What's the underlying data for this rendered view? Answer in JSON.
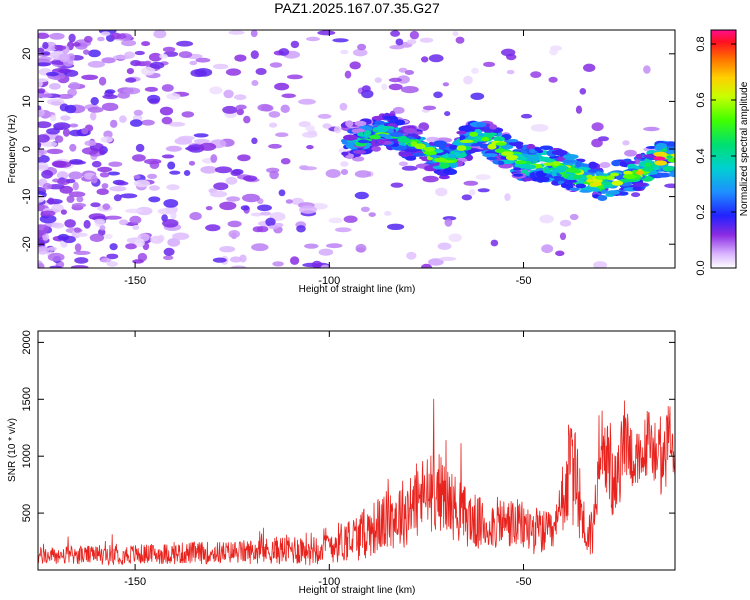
{
  "title": "PAZ1.2025.167.07.35.G27",
  "chart_data": [
    {
      "type": "heatmap",
      "xlabel": "Height of straight line (km)",
      "ylabel": "Frequency (Hz)",
      "xlim": [
        -175,
        -11
      ],
      "ylim": [
        -25,
        25
      ],
      "xticks": [
        -150,
        -100,
        -50
      ],
      "yticks": [
        20,
        10,
        0,
        -10,
        -20
      ],
      "colorbar": {
        "label": "Normalized spectral amplitude",
        "range": [
          0,
          0.85
        ],
        "ticks": [
          0.0,
          0.2,
          0.4,
          0.6,
          0.8
        ],
        "colormap": "rainbow"
      },
      "ridge": {
        "description_points_x": [
          -92,
          -85,
          -78,
          -70,
          -62,
          -55,
          -50,
          -45,
          -40,
          -35,
          -30,
          -25,
          -20,
          -15,
          -11
        ],
        "description_points_y": [
          2,
          4,
          1,
          -3,
          3,
          0,
          -3,
          -3,
          -4,
          -6,
          -7,
          -6,
          -5,
          -2,
          -2
        ],
        "peak_amplitude": 0.85
      },
      "grid": false
    },
    {
      "type": "line",
      "xlabel": "Height of straight line (km)",
      "ylabel": "SNR (10 * v/v)",
      "xlim": [
        -175,
        -11
      ],
      "ylim": [
        0,
        2100
      ],
      "xticks": [
        -150,
        -100,
        -50
      ],
      "yticks": [
        500,
        1000,
        1500,
        2000
      ],
      "series": [
        {
          "color": "#e8231e",
          "x": [
            -175,
            -165,
            -155,
            -145,
            -135,
            -125,
            -115,
            -105,
            -98,
            -92,
            -86,
            -80,
            -76,
            -72,
            -68,
            -64,
            -60,
            -56,
            -52,
            -48,
            -45,
            -42,
            -40,
            -38,
            -36,
            -34,
            -32,
            -30,
            -28,
            -26,
            -24,
            -22,
            -20,
            -18,
            -16,
            -14,
            -12,
            -11
          ],
          "y": [
            120,
            130,
            135,
            140,
            150,
            155,
            170,
            190,
            240,
            300,
            420,
            520,
            650,
            700,
            560,
            450,
            380,
            420,
            400,
            360,
            330,
            310,
            600,
            900,
            700,
            300,
            350,
            1250,
            850,
            700,
            1200,
            1000,
            900,
            1150,
            1050,
            900,
            1300,
            900
          ],
          "noise": [
            80,
            80,
            90,
            90,
            100,
            100,
            120,
            150,
            180,
            220,
            260,
            320,
            350,
            350,
            300,
            260,
            230,
            230,
            230,
            220,
            200,
            180,
            300,
            500,
            420,
            200,
            250,
            350,
            350,
            300,
            350,
            300,
            300,
            300,
            300,
            300,
            300,
            300
          ]
        }
      ],
      "grid": false
    }
  ]
}
